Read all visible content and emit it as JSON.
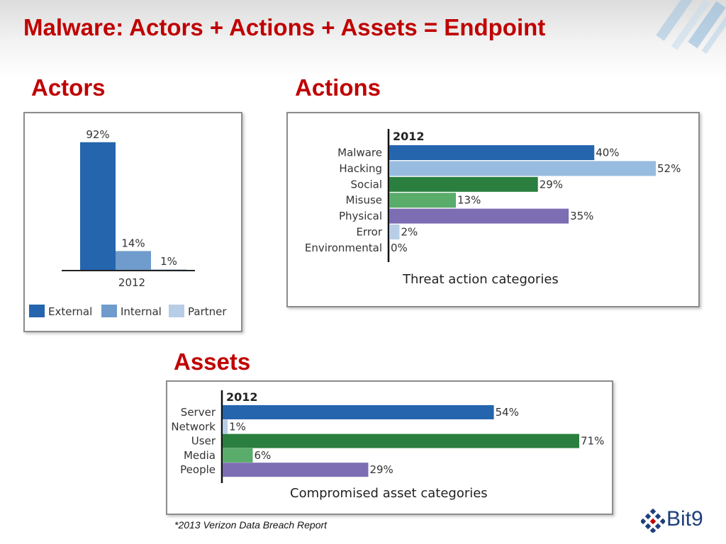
{
  "slide": {
    "title": "Malware: Actors + Actions + Assets = Endpoint",
    "footnote": "*2013 Verizon Data Breach Report",
    "logo_text": "Bit9"
  },
  "colors": {
    "title_red": "#c00000",
    "dark_blue": "#2465ad",
    "mid_blue": "#6f9ccc",
    "light_blue": "#98bce0",
    "pale_blue": "#b8cde6",
    "dark_green": "#2a7f3e",
    "light_green": "#5aac6b",
    "purple": "#7d6db3"
  },
  "sections": {
    "actors": "Actors",
    "actions": "Actions",
    "assets": "Assets"
  },
  "chart_data": [
    {
      "type": "bar",
      "title": "",
      "categories": [
        "2012"
      ],
      "series": [
        {
          "name": "External",
          "values": [
            92
          ],
          "color": "#2465ad"
        },
        {
          "name": "Internal",
          "values": [
            14
          ],
          "color": "#6f9ccc"
        },
        {
          "name": "Partner",
          "values": [
            1
          ],
          "color": "#b8cde6"
        }
      ],
      "data_labels": [
        "92%",
        "14%",
        "1%"
      ],
      "ylim": [
        0,
        100
      ],
      "grid": false,
      "legend": "bottom"
    },
    {
      "type": "bar",
      "orientation": "horizontal",
      "title": "Threat action categories",
      "header": "2012",
      "categories": [
        "Malware",
        "Hacking",
        "Social",
        "Misuse",
        "Physical",
        "Error",
        "Environmental"
      ],
      "values": [
        40,
        52,
        29,
        13,
        35,
        2,
        0
      ],
      "data_labels": [
        "40%",
        "52%",
        "29%",
        "13%",
        "35%",
        "2%",
        "0%"
      ],
      "colors": [
        "#2465ad",
        "#98bce0",
        "#2a7f3e",
        "#5aac6b",
        "#7d6db3",
        "#b8cde6",
        "#b8cde6"
      ],
      "xlim": [
        0,
        52
      ],
      "grid": false
    },
    {
      "type": "bar",
      "orientation": "horizontal",
      "title": "Compromised asset categories",
      "header": "2012",
      "categories": [
        "Server",
        "Network",
        "User",
        "Media",
        "People"
      ],
      "values": [
        54,
        1,
        71,
        6,
        29
      ],
      "data_labels": [
        "54%",
        "1%",
        "71%",
        "6%",
        "29%"
      ],
      "colors": [
        "#2465ad",
        "#b8cde6",
        "#2a7f3e",
        "#5aac6b",
        "#7d6db3"
      ],
      "xlim": [
        0,
        71
      ],
      "grid": false
    }
  ]
}
